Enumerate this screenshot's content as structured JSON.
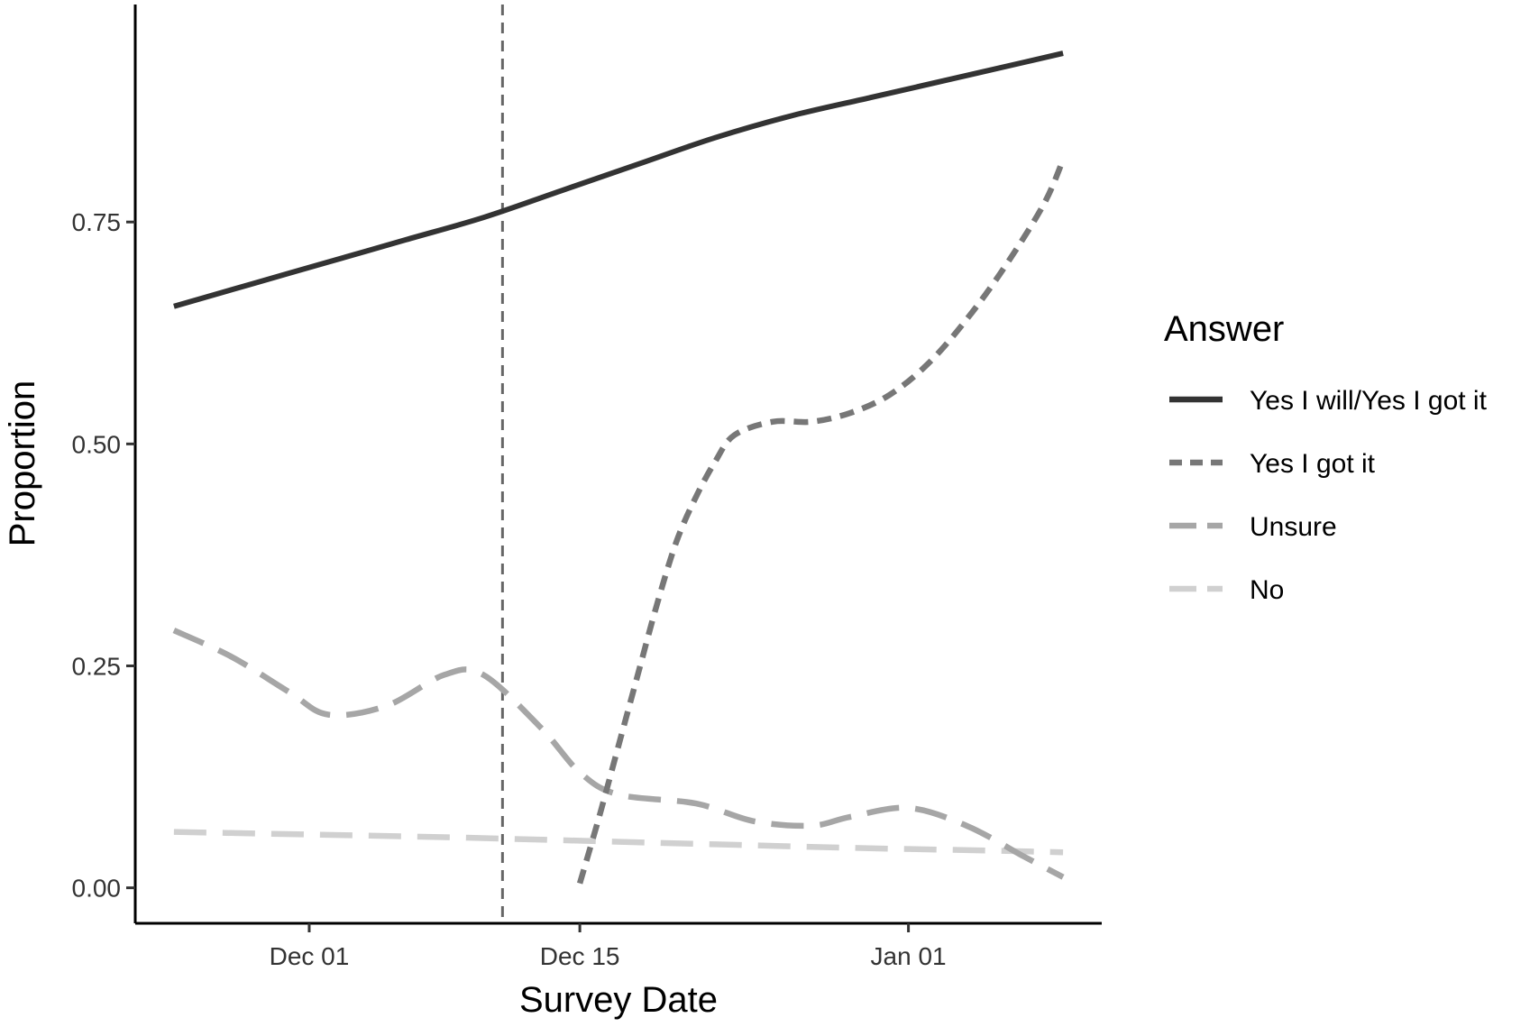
{
  "chart_data": {
    "type": "line",
    "title": "",
    "xlabel": "Survey Date",
    "ylabel": "Proportion",
    "x_ticks": [
      "Dec 01",
      "Dec 15",
      "Jan 01"
    ],
    "x_tick_dates": [
      "2020-12-01",
      "2020-12-15",
      "2021-01-01"
    ],
    "xlim": [
      "2020-11-22",
      "2021-01-11"
    ],
    "y_ticks": [
      "0.00",
      "0.25",
      "0.50",
      "0.75"
    ],
    "y_tick_values": [
      0,
      0.25,
      0.5,
      0.75
    ],
    "ylim": [
      -0.04,
      0.995
    ],
    "grid": false,
    "reference_line": {
      "x": "2020-12-11",
      "style": "dashed",
      "color": "#666666"
    },
    "legend": {
      "title": "Answer",
      "placement": "right"
    },
    "series": [
      {
        "name": "Yes I will/Yes I got it",
        "color": "#333333",
        "dash": "solid",
        "points": [
          [
            "2020-11-24",
            0.655
          ],
          [
            "2020-11-28",
            0.68
          ],
          [
            "2020-12-02",
            0.705
          ],
          [
            "2020-12-06",
            0.73
          ],
          [
            "2020-12-10",
            0.755
          ],
          [
            "2020-12-14",
            0.785
          ],
          [
            "2020-12-18",
            0.815
          ],
          [
            "2020-12-22",
            0.845
          ],
          [
            "2020-12-26",
            0.87
          ],
          [
            "2020-12-30",
            0.89
          ],
          [
            "2021-01-03",
            0.91
          ],
          [
            "2021-01-07",
            0.93
          ],
          [
            "2021-01-09",
            0.94
          ]
        ]
      },
      {
        "name": "Yes I got it",
        "color": "#777777",
        "dash": "short",
        "points": [
          [
            "2020-12-15",
            0.005
          ],
          [
            "2020-12-16",
            0.08
          ],
          [
            "2020-12-17",
            0.16
          ],
          [
            "2020-12-18",
            0.24
          ],
          [
            "2020-12-19",
            0.32
          ],
          [
            "2020-12-20",
            0.39
          ],
          [
            "2020-12-21",
            0.44
          ],
          [
            "2020-12-22",
            0.48
          ],
          [
            "2020-12-23",
            0.51
          ],
          [
            "2020-12-25",
            0.525
          ],
          [
            "2020-12-27",
            0.525
          ],
          [
            "2020-12-29",
            0.535
          ],
          [
            "2020-12-31",
            0.555
          ],
          [
            "2021-01-02",
            0.59
          ],
          [
            "2021-01-04",
            0.64
          ],
          [
            "2021-01-06",
            0.7
          ],
          [
            "2021-01-08",
            0.77
          ],
          [
            "2021-01-09",
            0.82
          ]
        ]
      },
      {
        "name": "Unsure",
        "color": "#a6a6a6",
        "dash": "long",
        "points": [
          [
            "2020-11-24",
            0.29
          ],
          [
            "2020-11-27",
            0.26
          ],
          [
            "2020-11-30",
            0.22
          ],
          [
            "2020-12-02",
            0.195
          ],
          [
            "2020-12-05",
            0.205
          ],
          [
            "2020-12-08",
            0.24
          ],
          [
            "2020-12-10",
            0.24
          ],
          [
            "2020-12-13",
            0.18
          ],
          [
            "2020-12-15",
            0.13
          ],
          [
            "2020-12-17",
            0.105
          ],
          [
            "2020-12-21",
            0.095
          ],
          [
            "2020-12-24",
            0.075
          ],
          [
            "2020-12-27",
            0.07
          ],
          [
            "2020-12-29",
            0.08
          ],
          [
            "2021-01-01",
            0.09
          ],
          [
            "2021-01-04",
            0.07
          ],
          [
            "2021-01-07",
            0.035
          ],
          [
            "2021-01-09",
            0.012
          ]
        ]
      },
      {
        "name": "No",
        "color": "#d0d0d0",
        "dash": "long",
        "points": [
          [
            "2020-11-24",
            0.063
          ],
          [
            "2020-12-01",
            0.06
          ],
          [
            "2020-12-08",
            0.057
          ],
          [
            "2020-12-15",
            0.053
          ],
          [
            "2020-12-22",
            0.049
          ],
          [
            "2020-12-29",
            0.045
          ],
          [
            "2021-01-05",
            0.042
          ],
          [
            "2021-01-09",
            0.04
          ]
        ]
      }
    ]
  }
}
